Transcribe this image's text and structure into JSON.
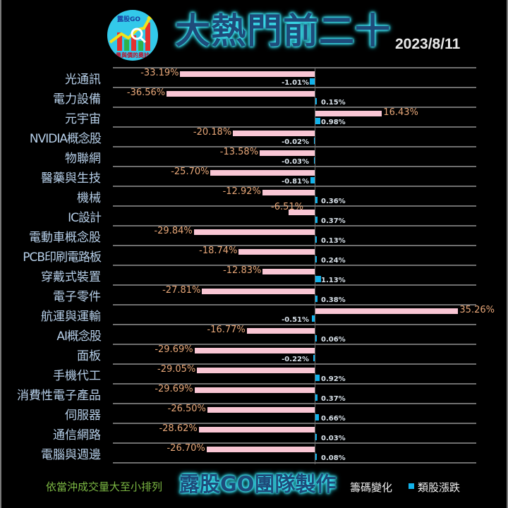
{
  "header": {
    "logo": {
      "brand": "露股GO",
      "tagline": "量與價的奧妙"
    },
    "title": "大熱門前二十",
    "date": "2023/8/11"
  },
  "colors": {
    "background": "#000000",
    "chip_change_bar": "#f9c6d4",
    "sector_change_bar": "#12b2ea",
    "chip_label": "#e8a778",
    "sector_label": "#d9e2ea",
    "category_label": "#b7d0ea",
    "title_glow": "#3fe6f5",
    "footer_note": "#7cb843"
  },
  "footer": {
    "note": "依當沖成交量大至小排列",
    "brand": "露股GO團隊製作",
    "legend": [
      {
        "label": "籌碼變化",
        "color": ""
      },
      {
        "label": "類股漲跌",
        "color": "#12b2ea"
      }
    ]
  },
  "chart_data": {
    "type": "bar",
    "orientation": "horizontal",
    "title": "大熱門前二十",
    "subtitle": "2023/8/11",
    "xlabel": "",
    "ylabel": "",
    "grid": true,
    "legend_position": "bottom-right",
    "categories": [
      "光通訊",
      "電力設備",
      "元宇宙",
      "NVIDIA概念股",
      "物聯網",
      "醫藥與生技",
      "機械",
      "IC設計",
      "電動車概念股",
      "PCB印刷電路板",
      "穿戴式裝置",
      "電子零件",
      "航運與運輸",
      "AI概念股",
      "面板",
      "手機代工",
      "消費性電子產品",
      "伺服器",
      "通信網路",
      "電腦與週邊"
    ],
    "series": [
      {
        "name": "籌碼變化",
        "unit": "%",
        "values": [
          -33.19,
          -36.56,
          16.43,
          -20.18,
          -13.58,
          -25.7,
          -12.92,
          -6.51,
          -29.84,
          -18.74,
          -12.83,
          -27.81,
          35.26,
          -16.77,
          -29.69,
          -29.05,
          -29.69,
          -26.5,
          -28.62,
          -26.7
        ],
        "labels": [
          "-33.19%",
          "-36.56%",
          "16.43%",
          "-20.18%",
          "-13.58%",
          "-25.70%",
          "-12.92%",
          "-6.51%",
          "-29.84%",
          "-18.74%",
          "-12.83%",
          "-27.81%",
          "35.26%",
          "-16.77%",
          "-29.69%",
          "-29.05%",
          "-29.69%",
          "-26.50%",
          "-28.62%",
          "-26.70%"
        ]
      },
      {
        "name": "類股漲跌",
        "unit": "%",
        "values": [
          -1.01,
          0.15,
          0.98,
          -0.02,
          -0.03,
          -0.81,
          0.36,
          0.37,
          0.13,
          0.24,
          1.13,
          0.38,
          -0.51,
          0.06,
          -0.22,
          0.92,
          0.37,
          0.66,
          0.03,
          0.08
        ],
        "labels": [
          "-1.01%",
          "0.15%",
          "0.98%",
          "-0.02%",
          "-0.03%",
          "-0.81%",
          "0.36%",
          "0.37%",
          "0.13%",
          "0.24%",
          "1.13%",
          "0.38%",
          "-0.51%",
          "0.06%",
          "-0.22%",
          "0.92%",
          "0.37%",
          "0.66%",
          "0.03%",
          "0.08%"
        ]
      }
    ]
  }
}
